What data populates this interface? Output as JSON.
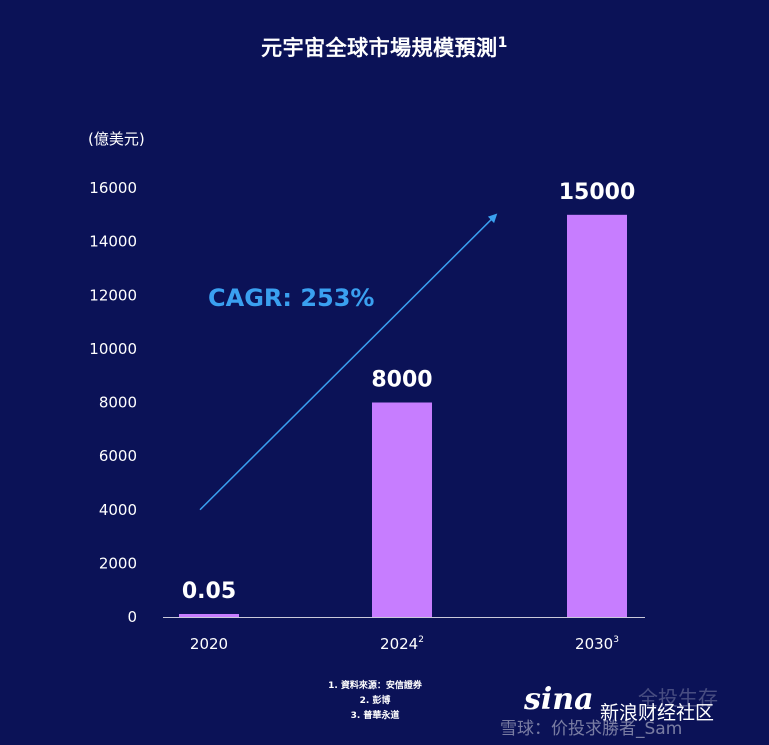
{
  "chart_data": {
    "type": "bar",
    "title": "元宇宙全球市場規模預測",
    "title_superscript": "1",
    "ylabel": "(億美元)",
    "xlabel": "",
    "ylim": [
      0,
      16000
    ],
    "yticks": [
      0,
      2000,
      4000,
      6000,
      8000,
      10000,
      12000,
      14000,
      16000
    ],
    "categories": [
      "2020",
      "2024",
      "2030"
    ],
    "category_superscripts": [
      "",
      "2",
      "3"
    ],
    "values": [
      0.05,
      8000,
      15000
    ],
    "data_labels": [
      "0.05",
      "8000",
      "15000"
    ],
    "bar_color": "#c77dff",
    "grid": false,
    "legend": "none",
    "annotation": {
      "text": "CAGR: 253%",
      "color": "#3aa0f0",
      "arrow_from": {
        "x": "2020",
        "y": 4000
      },
      "arrow_to": {
        "x": "2024-2030",
        "y": 15000
      }
    }
  },
  "footnotes": [
    "1. 資料來源：安信證券",
    "2. 彭博",
    "3. 普華永道"
  ],
  "watermark": {
    "logo": "sina",
    "site": "新浪财经社区",
    "user": "雪球：价投求勝者_Sam",
    "top_text": "全投生存"
  }
}
